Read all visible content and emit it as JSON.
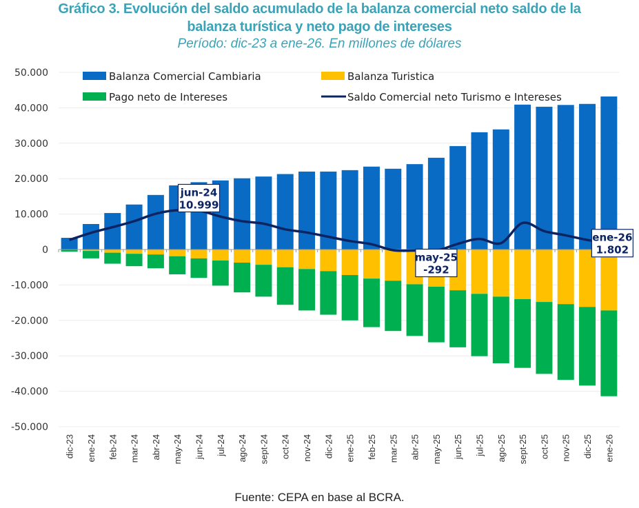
{
  "header": {
    "title_line1": "Gráfico 3. Evolución del saldo acumulado de la balanza comercial neto saldo de la",
    "title_line2": "balanza turística y neto pago de intereses",
    "subtitle": "Período: dic-23 a ene-26. En millones de dólares"
  },
  "footer": {
    "source": "Fuente: CEPA en base al BCRA."
  },
  "colors": {
    "comercial": "#0a6bc4",
    "turistica": "#ffc000",
    "intereses": "#00b050",
    "saldo": "#0d2463",
    "title": "#3aa3b8"
  },
  "chart_data": {
    "type": "bar",
    "stacked": true,
    "title": "Gráfico 3. Evolución del saldo acumulado de la balanza comercial neto saldo de la balanza turística y neto pago de intereses",
    "subtitle": "Período: dic-23 a ene-26. En millones de dólares",
    "xlabel": "",
    "ylabel": "",
    "ylim": [
      -50000,
      50000
    ],
    "yticks": [
      50000,
      40000,
      30000,
      20000,
      10000,
      0,
      -10000,
      -20000,
      -30000,
      -40000,
      -50000
    ],
    "ytick_labels": [
      "50.000",
      "40.000",
      "30.000",
      "20.000",
      "10.000",
      "0",
      "-10.000",
      "-20.000",
      "-30.000",
      "-40.000",
      "-50.000"
    ],
    "grid": true,
    "legend_position": "top",
    "categories": [
      "dic-23",
      "ene-24",
      "feb-24",
      "mar-24",
      "abr-24",
      "may-24",
      "jun-24",
      "jul-24",
      "ago-24",
      "sept-24",
      "oct-24",
      "nov-24",
      "dic-24",
      "ene-25",
      "feb-25",
      "mar-25",
      "abr-25",
      "may-25",
      "jun-25",
      "jul-25",
      "ago-25",
      "sept-25",
      "oct-25",
      "nov-25",
      "dic-25",
      "ene-26"
    ],
    "series": [
      {
        "name": "Balanza Comercial Cambiaria",
        "type": "bar",
        "color_key": "comercial",
        "values": [
          3300,
          7200,
          10300,
          12700,
          15400,
          18100,
          19000,
          19500,
          20100,
          20600,
          21300,
          22000,
          22000,
          22400,
          23400,
          22800,
          24100,
          25900,
          29200,
          33100,
          33900,
          40900,
          40300,
          40800,
          41100,
          43200
        ]
      },
      {
        "name": "Balanza Turistica",
        "type": "bar",
        "color_key": "turistica",
        "values": [
          -100,
          -400,
          -900,
          -1200,
          -1400,
          -1900,
          -2500,
          -3100,
          -3700,
          -4300,
          -5000,
          -5500,
          -6100,
          -7200,
          -8200,
          -8800,
          -9800,
          -10500,
          -11500,
          -12500,
          -13300,
          -14000,
          -14800,
          -15400,
          -16200,
          -17200
        ]
      },
      {
        "name": "Pago neto de Intereses",
        "type": "bar",
        "color_key": "intereses",
        "values": [
          -500,
          -2100,
          -3100,
          -3500,
          -3900,
          -5100,
          -5501,
          -7100,
          -8400,
          -9000,
          -10600,
          -11700,
          -12300,
          -12800,
          -13700,
          -14200,
          -14600,
          -15692,
          -16100,
          -17600,
          -18800,
          -19400,
          -20300,
          -21400,
          -22200,
          -24198
        ]
      },
      {
        "name": "Saldo Comercial neto Turismo e Intereses",
        "type": "line",
        "color_key": "saldo",
        "values": [
          2700,
          4700,
          6300,
          8000,
          10100,
          11100,
          10999,
          9300,
          8000,
          7300,
          5700,
          4800,
          3600,
          2400,
          1500,
          -200,
          -300,
          -292,
          1600,
          3000,
          1800,
          7500,
          5200,
          4000,
          2700,
          1802
        ]
      }
    ],
    "annotations": [
      {
        "category": "jun-24",
        "label": "jun-24",
        "value_label": "10.999"
      },
      {
        "category": "may-25",
        "label": "may-25",
        "value_label": "-292"
      },
      {
        "category": "ene-26",
        "label": "ene-26",
        "value_label": "1.802"
      }
    ]
  }
}
